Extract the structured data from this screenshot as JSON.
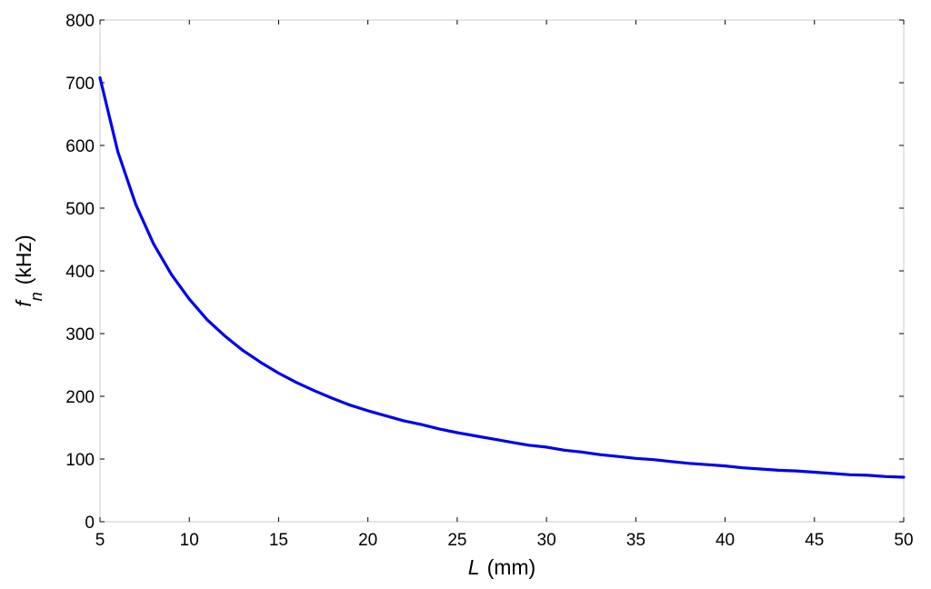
{
  "chart_data": {
    "type": "line",
    "xlabel": {
      "symbol": "L",
      "unit": "(mm)"
    },
    "ylabel": {
      "symbol": "f",
      "subscript": "n",
      "unit": "(kHz)"
    },
    "xlim": [
      5,
      50
    ],
    "ylim": [
      0,
      800
    ],
    "xticks": [
      "5",
      "10",
      "15",
      "20",
      "25",
      "30",
      "35",
      "40",
      "45",
      "50"
    ],
    "yticks": [
      "0",
      "100",
      "200",
      "300",
      "400",
      "500",
      "600",
      "700",
      "800"
    ],
    "grid": false,
    "series": [
      {
        "color": "#0000ee",
        "x": [
          5,
          6,
          7,
          8,
          9,
          10,
          11,
          12,
          13,
          14,
          15,
          16,
          17,
          18,
          19,
          20,
          21,
          22,
          23,
          24,
          25,
          26,
          27,
          28,
          29,
          30,
          31,
          32,
          33,
          34,
          35,
          36,
          37,
          38,
          39,
          40,
          41,
          42,
          43,
          44,
          45,
          46,
          47,
          48,
          49,
          50
        ],
        "y": [
          708,
          590,
          506,
          443,
          394,
          355,
          322,
          296,
          273,
          254,
          237,
          222,
          209,
          197,
          186,
          177,
          169,
          161,
          155,
          148,
          142,
          137,
          132,
          127,
          122,
          119,
          114,
          111,
          107,
          104,
          101,
          99,
          96,
          93,
          91,
          89,
          86,
          84,
          82,
          81,
          79,
          77,
          75,
          74,
          72,
          71
        ]
      }
    ]
  }
}
